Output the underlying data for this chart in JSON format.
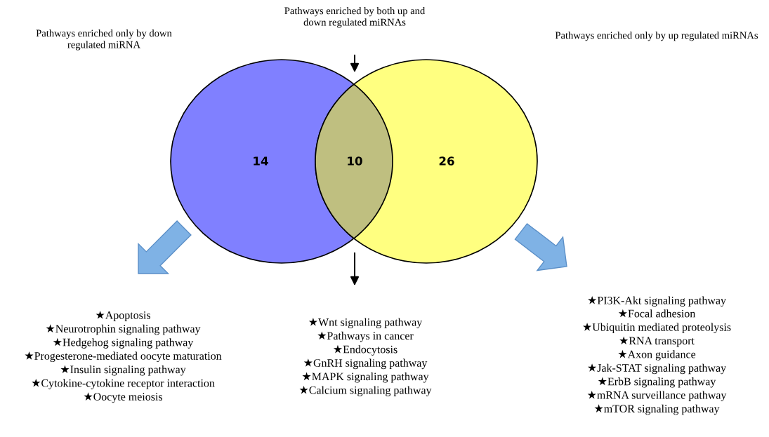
{
  "chart_data": {
    "type": "other",
    "categories": [
      null,
      null,
      null
    ],
    "values": [
      14,
      10,
      26
    ],
    "data_labels": true,
    "colors": [
      "#8080ff",
      "#bfbf80",
      "#ffff80"
    ],
    "annotations": [
      "Pathways enriched only by down regulated miRNA",
      "Pathways enriched by both up and down regulated miRNAs",
      "Pathways enriched only by up regulated miRNAs",
      "★Apoptosis\n★Neurotrophin signaling pathway\n★Hedgehog signaling pathway\n★Progesterone-mediated oocyte maturation\n★Insulin signaling pathway\n★Cytokine-cytokine receptor interaction\n★Oocyte meiosis",
      "★Wnt signaling pathway\n★Pathways in cancer\n★Endocytosis\n★GnRH signaling pathway\n★MAPK signaling pathway\n★Calcium signaling pathway",
      "★PI3K-Akt signaling pathway\n★Focal adhesion\n★Ubiquitin mediated proteolysis\n★RNA transport\n★Axon guidance\n★Jak-STAT signaling pathway\n★ErbB signaling pathway\n★mRNA surveillance pathway\n★mTOR signaling pathway"
    ]
  }
}
